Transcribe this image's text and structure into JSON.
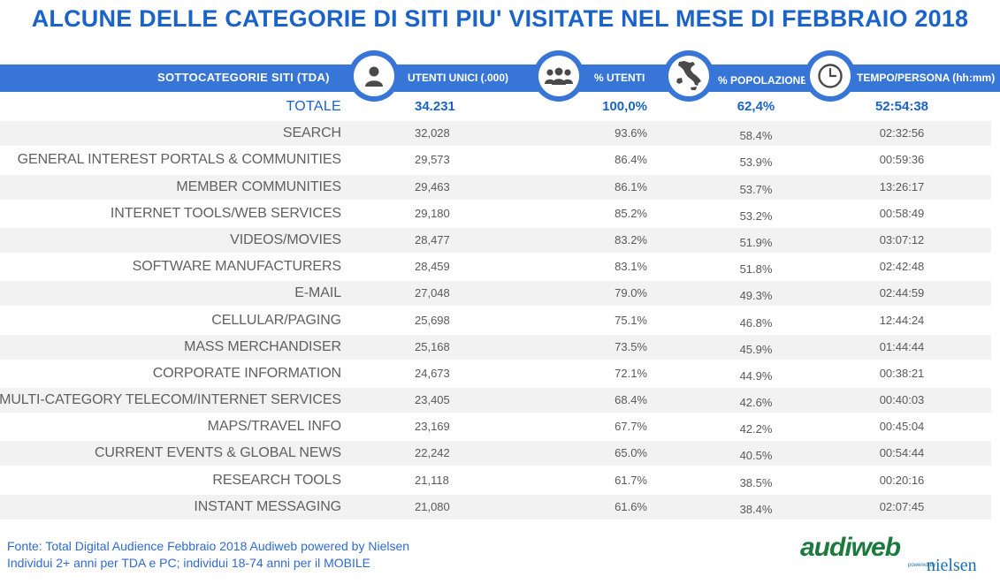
{
  "title": "ALCUNE DELLE CATEGORIE DI SITI PIU' VISITATE NEL MESE DI FEBBRAIO 2018",
  "header": {
    "category": "SOTTOCATEGORIE SITI  (TDA)",
    "unique_users": "UTENTI UNICI (.000)",
    "pct_users": "% UTENTI",
    "pct_population": "% POPOLAZIONE",
    "time_per_person": "TEMPO/PERSONA (hh:mm)"
  },
  "icons": {
    "unique_users": "person-icon",
    "pct_users": "group-icon",
    "pct_population": "italy-map-icon",
    "time_per_person": "clock-icon"
  },
  "colors": {
    "title": "#1b63c9",
    "header_bar": "#3775d6",
    "row_shade": "#f2f2f2",
    "logo_green": "#1b7b3c",
    "logo_blue": "#1b6fb0"
  },
  "total": {
    "name": "TOTALE",
    "users": "34.231",
    "pct_users": "100,0%",
    "pct_pop": "62,4%",
    "time": "52:54:38"
  },
  "rows": [
    {
      "name": "SEARCH",
      "users": "32,028",
      "pct_users": "93.6%",
      "pct_pop": "58.4%",
      "time": "02:32:56"
    },
    {
      "name": "GENERAL INTEREST PORTALS & COMMUNITIES",
      "users": "29,573",
      "pct_users": "86.4%",
      "pct_pop": "53.9%",
      "time": "00:59:36"
    },
    {
      "name": "MEMBER COMMUNITIES",
      "users": "29,463",
      "pct_users": "86.1%",
      "pct_pop": "53.7%",
      "time": "13:26:17"
    },
    {
      "name": "INTERNET TOOLS/WEB SERVICES",
      "users": "29,180",
      "pct_users": "85.2%",
      "pct_pop": "53.2%",
      "time": "00:58:49"
    },
    {
      "name": "VIDEOS/MOVIES",
      "users": "28,477",
      "pct_users": "83.2%",
      "pct_pop": "51.9%",
      "time": "03:07:12"
    },
    {
      "name": "SOFTWARE MANUFACTURERS",
      "users": "28,459",
      "pct_users": "83.1%",
      "pct_pop": "51.8%",
      "time": "02:42:48"
    },
    {
      "name": "E-MAIL",
      "users": "27,048",
      "pct_users": "79.0%",
      "pct_pop": "49.3%",
      "time": "02:44:59"
    },
    {
      "name": "CELLULAR/PAGING",
      "users": "25,698",
      "pct_users": "75.1%",
      "pct_pop": "46.8%",
      "time": "12:44:24"
    },
    {
      "name": "MASS MERCHANDISER",
      "users": "25,168",
      "pct_users": "73.5%",
      "pct_pop": "45.9%",
      "time": "01:44:44"
    },
    {
      "name": "CORPORATE INFORMATION",
      "users": "24,673",
      "pct_users": "72.1%",
      "pct_pop": "44.9%",
      "time": "00:38:21"
    },
    {
      "name": "MULTI-CATEGORY TELECOM/INTERNET SERVICES",
      "users": "23,405",
      "pct_users": "68.4%",
      "pct_pop": "42.6%",
      "time": "00:40:03"
    },
    {
      "name": "MAPS/TRAVEL INFO",
      "users": "23,169",
      "pct_users": "67.7%",
      "pct_pop": "42.2%",
      "time": "00:45:04"
    },
    {
      "name": "CURRENT EVENTS & GLOBAL NEWS",
      "users": "22,242",
      "pct_users": "65.0%",
      "pct_pop": "40.5%",
      "time": "00:54:44"
    },
    {
      "name": "RESEARCH TOOLS",
      "users": "21,118",
      "pct_users": "61.7%",
      "pct_pop": "38.5%",
      "time": "00:20:16"
    },
    {
      "name": "INSTANT MESSAGING",
      "users": "21,080",
      "pct_users": "61.6%",
      "pct_pop": "38.4%",
      "time": "02:07:45"
    }
  ],
  "footer": {
    "line1": "Fonte: Total Digital Audience Febbraio 2018 Audiweb powered by Nielsen",
    "line2": "Individui 2+ anni per TDA e PC; individui 18-74 anni per il MOBILE"
  },
  "logo": {
    "main": "audiweb",
    "powered": "powered by",
    "sub": "nielsen"
  }
}
